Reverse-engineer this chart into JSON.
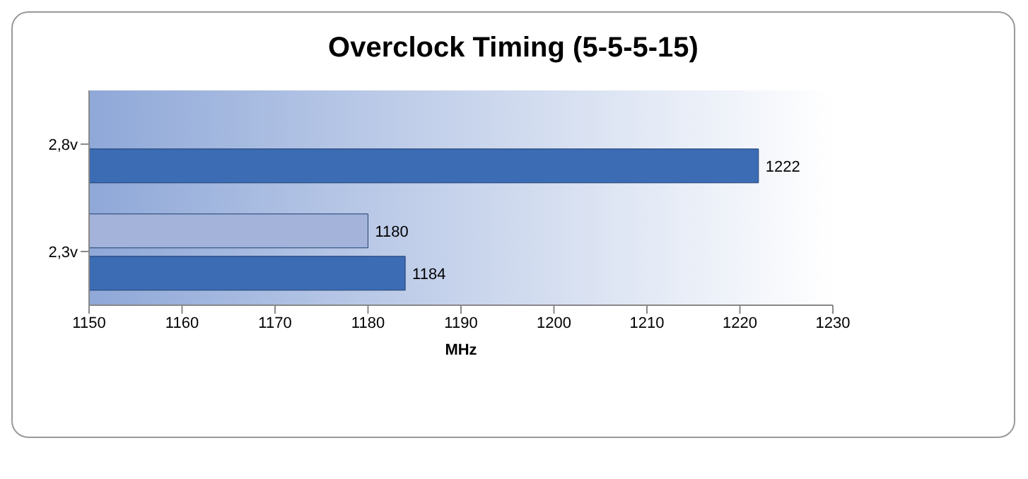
{
  "chart_data": {
    "type": "bar",
    "orientation": "horizontal",
    "title": "Overclock Timing (5-5-5-15)",
    "xlabel": "MHz",
    "categories": [
      "2,8v",
      "2,3v"
    ],
    "series": [
      {
        "color": "#a3b3d9",
        "values": [
          null,
          1180
        ]
      },
      {
        "color": "#3b6cb4",
        "values": [
          1222,
          1184
        ]
      }
    ],
    "xlim": [
      1150,
      1230
    ],
    "xticks": [
      1150,
      1160,
      1170,
      1180,
      1190,
      1200,
      1210,
      1220,
      1230
    ],
    "data_labels": true,
    "grid": false,
    "legend": false
  }
}
